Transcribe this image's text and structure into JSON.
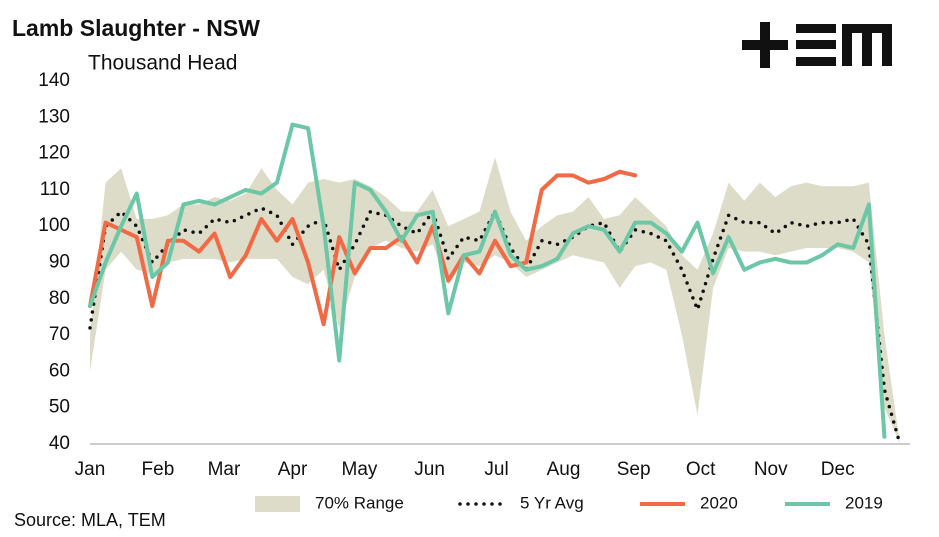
{
  "chart_data": {
    "type": "line",
    "title": "Lamb Slaughter - NSW",
    "subtitle": "Thousand Head",
    "source": "Source: MLA, TEM",
    "x": [
      1,
      2,
      3,
      4,
      5,
      6,
      7,
      8,
      9,
      10,
      11,
      12,
      13,
      14,
      15,
      16,
      17,
      18,
      19,
      20,
      21,
      22,
      23,
      24,
      25,
      26,
      27,
      28,
      29,
      30,
      31,
      32,
      33,
      34,
      35,
      36,
      37,
      38,
      39,
      40,
      41,
      42,
      43,
      44,
      45,
      46,
      47,
      48,
      49,
      50,
      51,
      52,
      53
    ],
    "xlim": [
      1,
      53
    ],
    "xticks": [
      {
        "value": 1,
        "label": "Jan"
      },
      {
        "value": 5.36,
        "label": "Feb"
      },
      {
        "value": 9.6,
        "label": "Mar"
      },
      {
        "value": 14.0,
        "label": "Apr"
      },
      {
        "value": 18.3,
        "label": "May"
      },
      {
        "value": 22.8,
        "label": "Jun"
      },
      {
        "value": 27.1,
        "label": "Jul"
      },
      {
        "value": 31.4,
        "label": "Aug"
      },
      {
        "value": 35.9,
        "label": "Sep"
      },
      {
        "value": 40.2,
        "label": "Oct"
      },
      {
        "value": 44.7,
        "label": "Nov"
      },
      {
        "value": 49.0,
        "label": "Dec"
      }
    ],
    "ylim": [
      40,
      140
    ],
    "yticks": [
      40,
      50,
      60,
      70,
      80,
      90,
      100,
      110,
      120,
      130,
      140
    ],
    "series": [
      {
        "name": "70% Range",
        "kind": "band",
        "color": "#dcdcc8",
        "values": [
          70,
          112,
          116,
          102,
          102,
          103,
          106,
          106,
          108,
          107,
          109,
          116,
          110,
          106,
          112,
          113,
          112,
          113,
          111,
          108,
          104,
          104,
          110,
          100,
          102,
          104,
          119,
          104,
          96,
          100,
          103,
          104,
          108,
          102,
          103,
          108,
          104,
          100,
          92,
          88,
          98,
          112,
          107,
          112,
          108,
          111,
          112,
          111,
          111,
          111,
          112,
          70,
          40
        ],
        "lower": [
          60,
          88,
          93,
          88,
          87,
          90,
          91,
          91,
          91,
          90,
          91,
          91,
          91,
          86,
          84,
          88,
          72,
          86,
          94,
          96,
          94,
          93,
          95,
          84,
          90,
          89,
          92,
          90,
          86,
          88,
          90,
          92,
          91,
          90,
          83,
          89,
          90,
          88,
          70,
          48,
          83,
          94,
          93,
          93,
          92,
          93,
          94,
          94,
          94,
          93,
          90,
          50,
          40
        ]
      },
      {
        "name": "5 Yr Avg",
        "kind": "dotted",
        "color": "#111111",
        "values": [
          72,
          100,
          104,
          100,
          90,
          95,
          99,
          98,
          102,
          101,
          103,
          105,
          103,
          95,
          100,
          102,
          88,
          95,
          104,
          103,
          100,
          98,
          104,
          91,
          97,
          96,
          104,
          94,
          88,
          96,
          95,
          97,
          100,
          101,
          93,
          99,
          98,
          96,
          88,
          77,
          91,
          103,
          101,
          101,
          98,
          101,
          100,
          101,
          101,
          102,
          95,
          55,
          40
        ]
      },
      {
        "name": "2020",
        "kind": "line",
        "color": "#f26a45",
        "values": [
          78,
          101,
          99,
          97,
          78,
          96,
          96,
          93,
          98,
          86,
          92,
          102,
          96,
          102,
          90,
          73,
          97,
          87,
          94,
          94,
          97,
          90,
          100,
          85,
          92,
          87,
          96,
          89,
          90,
          110,
          114,
          114,
          112,
          113,
          115,
          114,
          null,
          null,
          null,
          null,
          null,
          null,
          null,
          null,
          null,
          null,
          null,
          null,
          null,
          null,
          null,
          null,
          null
        ]
      },
      {
        "name": "2019",
        "kind": "line",
        "color": "#6cc7a6",
        "values": [
          78,
          90,
          100,
          109,
          86,
          90,
          106,
          107,
          106,
          108,
          110,
          109,
          112,
          128,
          127,
          100,
          63,
          112,
          110,
          104,
          96,
          103,
          104,
          76,
          92,
          93,
          104,
          92,
          88,
          89,
          91,
          98,
          100,
          99,
          93,
          101,
          101,
          98,
          93,
          101,
          87,
          97,
          88,
          90,
          91,
          90,
          90,
          92,
          95,
          94,
          106,
          42,
          null
        ]
      }
    ]
  }
}
